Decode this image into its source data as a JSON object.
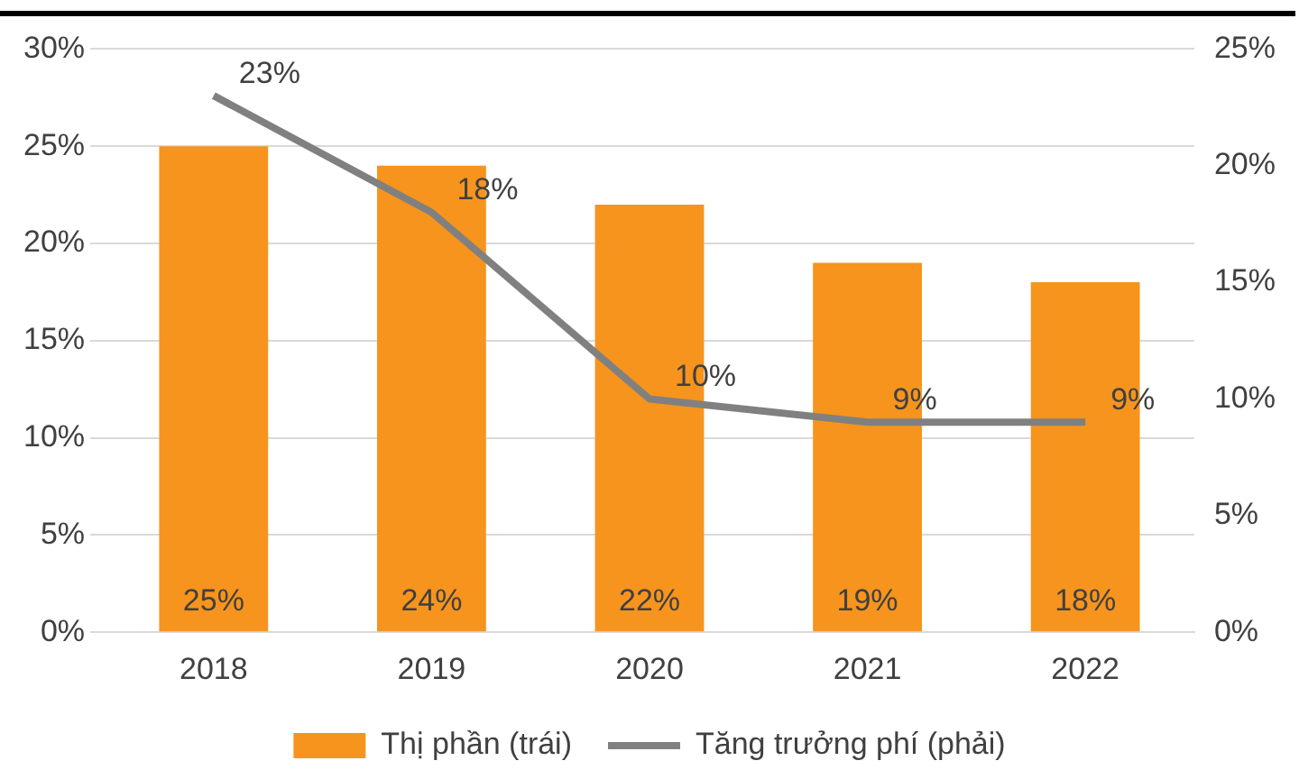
{
  "chart_data": {
    "type": "bar",
    "categories": [
      "2018",
      "2019",
      "2020",
      "2021",
      "2022"
    ],
    "series": [
      {
        "name": "Thị phần (trái)",
        "color": "#f7941d",
        "values": [
          25,
          24,
          22,
          19,
          18
        ],
        "value_labels": [
          "25%",
          "24%",
          "22%",
          "19%",
          "18%"
        ]
      },
      {
        "name": "Tăng trưởng phí (phải)",
        "type": "line",
        "axis": "y2",
        "color": "#808080",
        "values": [
          23,
          18,
          10,
          9,
          9
        ],
        "value_labels": [
          "23%",
          "18%",
          "10%",
          "9%",
          "9%"
        ]
      }
    ],
    "ylim": [
      0,
      30
    ],
    "yticks": [
      {
        "value": 0,
        "label": "0%"
      },
      {
        "value": 5,
        "label": "5%"
      },
      {
        "value": 10,
        "label": "10%"
      },
      {
        "value": 15,
        "label": "15%"
      },
      {
        "value": 20,
        "label": "20%"
      },
      {
        "value": 25,
        "label": "25%"
      },
      {
        "value": 30,
        "label": "30%"
      }
    ],
    "y2lim": [
      0,
      25
    ],
    "y2ticks": [
      {
        "value": 0,
        "label": "0%"
      },
      {
        "value": 5,
        "label": "5%"
      },
      {
        "value": 10,
        "label": "10%"
      },
      {
        "value": 15,
        "label": "15%"
      },
      {
        "value": 20,
        "label": "20%"
      },
      {
        "value": 25,
        "label": "25%"
      }
    ],
    "grid": "y",
    "legend": "bottom",
    "marker": "none",
    "line_style": "solid"
  }
}
